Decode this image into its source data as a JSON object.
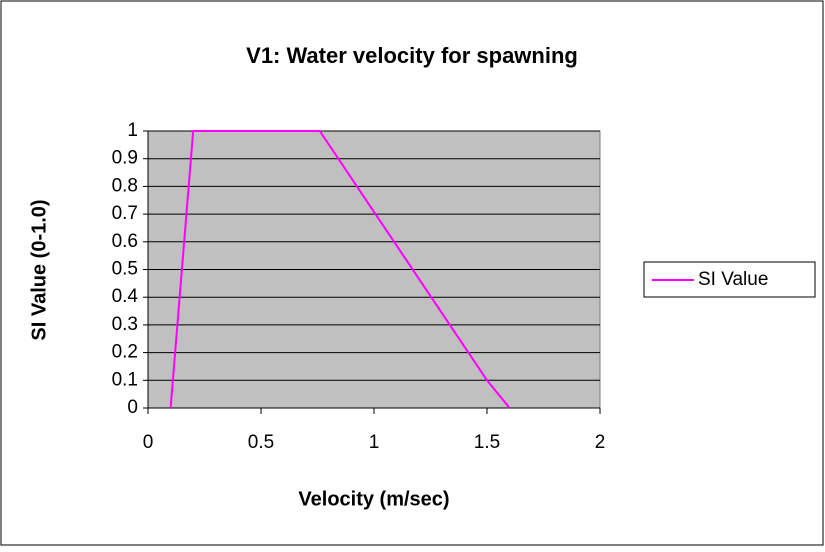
{
  "chart_data": {
    "type": "line",
    "title": "V1: Water velocity for spawning",
    "xlabel": "Velocity (m/sec)",
    "ylabel": "SI Value (0-1.0)",
    "x": [
      0.1,
      0.2,
      0.76,
      1.5,
      1.6
    ],
    "series": [
      {
        "name": "SI Value",
        "color": "#ff00ff",
        "values": [
          0,
          1,
          1,
          0.1,
          0
        ]
      }
    ],
    "xlim": [
      0,
      2
    ],
    "xticks": [
      0,
      0.5,
      1,
      1.5,
      2
    ],
    "ylim": [
      0,
      1
    ],
    "yticks": [
      0,
      0.1,
      0.2,
      0.3,
      0.4,
      0.5,
      0.6,
      0.7,
      0.8,
      0.9,
      1
    ],
    "grid": true,
    "legend": "right",
    "plot_background": "#c0c0c0"
  }
}
